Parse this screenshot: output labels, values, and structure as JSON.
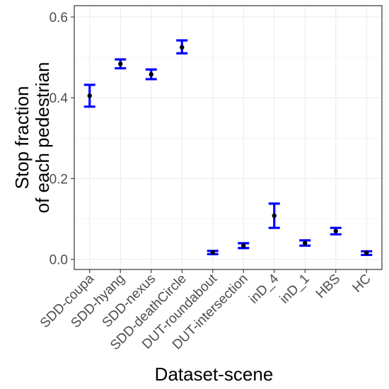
{
  "chart_data": {
    "type": "errorbar",
    "title": "",
    "xlabel": "Dataset-scene",
    "ylabel_lines": [
      "Stop fraction",
      "of each pedestrian"
    ],
    "categories": [
      "SDD-coupa",
      "SDD-hyang",
      "SDD-nexus",
      "SDD-deathCircle",
      "DUT-roundabout",
      "DUT-intersection",
      "inD_4",
      "inD_1",
      "HBS",
      "HC"
    ],
    "points": [
      {
        "category": "SDD-coupa",
        "y": 0.405,
        "low": 0.378,
        "high": 0.432
      },
      {
        "category": "SDD-hyang",
        "y": 0.484,
        "low": 0.473,
        "high": 0.495
      },
      {
        "category": "SDD-nexus",
        "y": 0.458,
        "low": 0.446,
        "high": 0.47
      },
      {
        "category": "SDD-deathCircle",
        "y": 0.525,
        "low": 0.51,
        "high": 0.542
      },
      {
        "category": "DUT-roundabout",
        "y": 0.017,
        "low": 0.013,
        "high": 0.021
      },
      {
        "category": "DUT-intersection",
        "y": 0.034,
        "low": 0.028,
        "high": 0.04
      },
      {
        "category": "inD_4",
        "y": 0.108,
        "low": 0.078,
        "high": 0.138
      },
      {
        "category": "inD_1",
        "y": 0.04,
        "low": 0.034,
        "high": 0.047
      },
      {
        "category": "HBS",
        "y": 0.07,
        "low": 0.062,
        "high": 0.078
      },
      {
        "category": "HC",
        "y": 0.016,
        "low": 0.011,
        "high": 0.02
      }
    ],
    "ylim": [
      -0.025,
      0.628
    ],
    "yticks": [
      0.0,
      0.2,
      0.4,
      0.6
    ],
    "ytick_labels": [
      "0.0",
      "0.2",
      "0.4",
      "0.6"
    ],
    "grid": true,
    "errorbar_color": "#0000ff",
    "point_color": "#000000",
    "panel_border_color": "#333333",
    "grid_major_color": "#ebebeb",
    "grid_minor_color": "#f5f5f5"
  }
}
